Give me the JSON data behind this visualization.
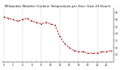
{
  "title": "Milwaukee Weather Outdoor Temperature per Hour (Last 24 Hours)",
  "hours": [
    0,
    1,
    2,
    3,
    4,
    5,
    6,
    7,
    8,
    9,
    10,
    11,
    12,
    13,
    14,
    15,
    16,
    17,
    18,
    19,
    20,
    21,
    22,
    23
  ],
  "temps": [
    52,
    51,
    50,
    49,
    50,
    51,
    49,
    48,
    47,
    48,
    47,
    46,
    38,
    33,
    30,
    28,
    27,
    27,
    26,
    26,
    26,
    27,
    27,
    28
  ],
  "line_color": "#cc0000",
  "marker_color": "#000000",
  "bg_color": "#ffffff",
  "grid_color": "#999999",
  "title_color": "#000000",
  "ylim": [
    20,
    58
  ],
  "yticks": [
    25,
    30,
    35,
    40,
    45,
    50,
    55
  ],
  "xtick_interval": 1,
  "title_fontsize": 2.8,
  "tick_fontsize": 2.2,
  "grid_x_positions": [
    0,
    4,
    8,
    12,
    16,
    20
  ]
}
